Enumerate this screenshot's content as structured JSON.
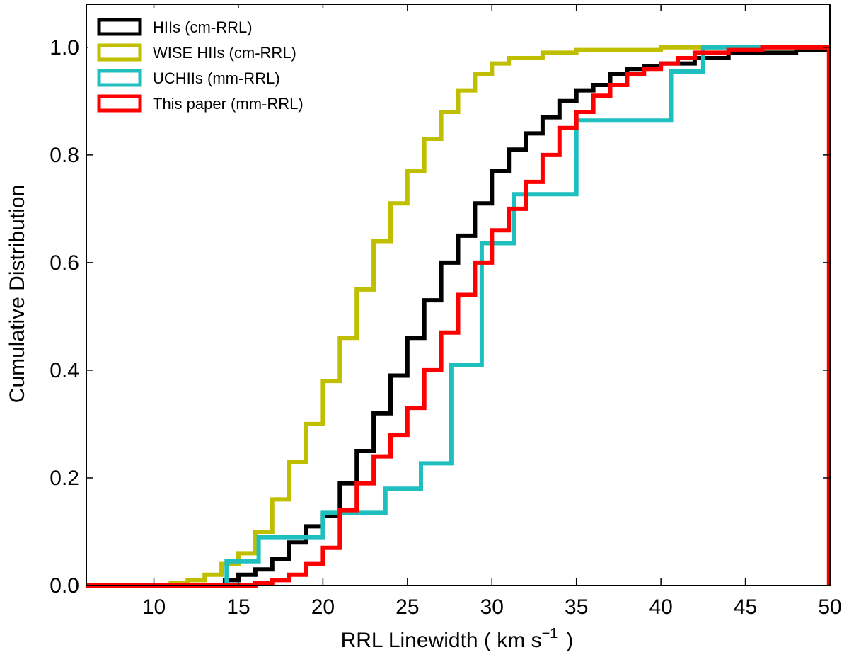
{
  "chart_data": {
    "type": "line",
    "title": "",
    "xlabel": "RRL Linewidth ( km s",
    "xlabel_sup": "−1",
    "xlabel_end": ")",
    "ylabel": "Cumulative Distribution",
    "xlim": [
      6,
      50
    ],
    "ylim": [
      0,
      1.08
    ],
    "x_ticks": [
      10,
      15,
      20,
      25,
      30,
      35,
      40,
      45,
      50
    ],
    "y_ticks": [
      0.0,
      0.2,
      0.4,
      0.6,
      0.8,
      1.0
    ],
    "x_tick_labels": [
      "10",
      "15",
      "20",
      "25",
      "30",
      "35",
      "40",
      "45",
      "50"
    ],
    "y_tick_labels": [
      "0.0",
      "0.2",
      "0.4",
      "0.6",
      "0.8",
      "1.0"
    ],
    "legend_position": "top-left",
    "series": [
      {
        "name": "HIIs (cm-RRL)",
        "color": "#000000",
        "style": "step",
        "points": [
          [
            6,
            0
          ],
          [
            13.8,
            0
          ],
          [
            14.2,
            0.01
          ],
          [
            15,
            0.02
          ],
          [
            16,
            0.03
          ],
          [
            17,
            0.05
          ],
          [
            18,
            0.08
          ],
          [
            19,
            0.11
          ],
          [
            20,
            0.13
          ],
          [
            21,
            0.19
          ],
          [
            22,
            0.25
          ],
          [
            23,
            0.32
          ],
          [
            24,
            0.39
          ],
          [
            25,
            0.46
          ],
          [
            26,
            0.53
          ],
          [
            27,
            0.6
          ],
          [
            28,
            0.65
          ],
          [
            29,
            0.71
          ],
          [
            30,
            0.77
          ],
          [
            31,
            0.81
          ],
          [
            32,
            0.84
          ],
          [
            33,
            0.87
          ],
          [
            34,
            0.9
          ],
          [
            35,
            0.92
          ],
          [
            36,
            0.93
          ],
          [
            37,
            0.95
          ],
          [
            38,
            0.96
          ],
          [
            39,
            0.965
          ],
          [
            40,
            0.97
          ],
          [
            42,
            0.98
          ],
          [
            44,
            0.99
          ],
          [
            46,
            0.99
          ],
          [
            48,
            0.995
          ],
          [
            49.9,
            1.0
          ],
          [
            50,
            1.0
          ]
        ]
      },
      {
        "name": "WISE HIIs (cm-RRL)",
        "color": "#bfbf00",
        "style": "step",
        "points": [
          [
            6,
            0
          ],
          [
            11,
            0.005
          ],
          [
            12,
            0.01
          ],
          [
            13,
            0.02
          ],
          [
            14,
            0.04
          ],
          [
            15,
            0.06
          ],
          [
            16,
            0.1
          ],
          [
            17,
            0.16
          ],
          [
            18,
            0.23
          ],
          [
            19,
            0.3
          ],
          [
            20,
            0.38
          ],
          [
            21,
            0.46
          ],
          [
            22,
            0.55
          ],
          [
            23,
            0.64
          ],
          [
            24,
            0.71
          ],
          [
            25,
            0.77
          ],
          [
            26,
            0.83
          ],
          [
            27,
            0.88
          ],
          [
            28,
            0.92
          ],
          [
            29,
            0.95
          ],
          [
            30,
            0.97
          ],
          [
            31,
            0.98
          ],
          [
            33,
            0.99
          ],
          [
            35,
            0.995
          ],
          [
            40,
            1.0
          ],
          [
            50,
            1.0
          ]
        ]
      },
      {
        "name": "UCHIIs (mm-RRL)",
        "color": "#1fbfbf",
        "style": "step",
        "points": [
          [
            6,
            0
          ],
          [
            14.3,
            0
          ],
          [
            14.3,
            0.045
          ],
          [
            16.2,
            0.045
          ],
          [
            16.2,
            0.09
          ],
          [
            20,
            0.09
          ],
          [
            20,
            0.135
          ],
          [
            23.7,
            0.135
          ],
          [
            23.7,
            0.18
          ],
          [
            25.8,
            0.18
          ],
          [
            25.8,
            0.227
          ],
          [
            27.6,
            0.227
          ],
          [
            27.6,
            0.41
          ],
          [
            29.4,
            0.41
          ],
          [
            29.4,
            0.636
          ],
          [
            31.3,
            0.636
          ],
          [
            31.3,
            0.727
          ],
          [
            35,
            0.727
          ],
          [
            35,
            0.864
          ],
          [
            40.6,
            0.864
          ],
          [
            40.6,
            0.955
          ],
          [
            42.5,
            0.955
          ],
          [
            42.5,
            1.0
          ],
          [
            46,
            1.0
          ]
        ]
      },
      {
        "name": "This paper (mm-RRL)",
        "color": "#ff0000",
        "style": "step",
        "points": [
          [
            6,
            0
          ],
          [
            15.7,
            0
          ],
          [
            16,
            0.005
          ],
          [
            17,
            0.01
          ],
          [
            18,
            0.02
          ],
          [
            19,
            0.04
          ],
          [
            20,
            0.07
          ],
          [
            21,
            0.14
          ],
          [
            22,
            0.19
          ],
          [
            23,
            0.24
          ],
          [
            24,
            0.28
          ],
          [
            25,
            0.33
          ],
          [
            26,
            0.4
          ],
          [
            27,
            0.47
          ],
          [
            28,
            0.54
          ],
          [
            29,
            0.6
          ],
          [
            30,
            0.66
          ],
          [
            31,
            0.7
          ],
          [
            32,
            0.75
          ],
          [
            33,
            0.8
          ],
          [
            34,
            0.85
          ],
          [
            35,
            0.88
          ],
          [
            36,
            0.91
          ],
          [
            37,
            0.93
          ],
          [
            38,
            0.95
          ],
          [
            39,
            0.96
          ],
          [
            40,
            0.97
          ],
          [
            41,
            0.98
          ],
          [
            42,
            0.99
          ],
          [
            44,
            0.995
          ],
          [
            46,
            1.0
          ],
          [
            49.9,
            1.0
          ],
          [
            49.95,
            0.0
          ]
        ]
      }
    ]
  }
}
